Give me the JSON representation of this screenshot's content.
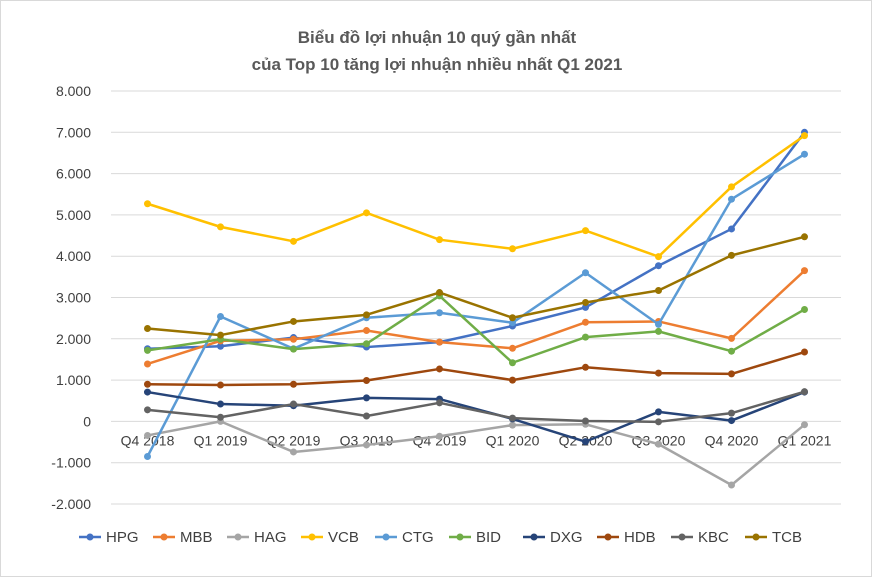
{
  "chart_data": {
    "type": "line",
    "title": "Biểu đồ lợi nhuận 10 quý gần nhất",
    "subtitle": "của Top 10 tăng lợi nhuận nhiều nhất Q1 2021",
    "categories": [
      "Q4 2018",
      "Q1 2019",
      "Q2 2019",
      "Q3 2019",
      "Q4 2019",
      "Q1 2020",
      "Q2 2020",
      "Q3 2020",
      "Q4 2020",
      "Q1 2021"
    ],
    "ylim": [
      -2000,
      8000
    ],
    "yticks": [
      8000,
      7000,
      6000,
      5000,
      4000,
      3000,
      2000,
      1000,
      0,
      -1000,
      -2000
    ],
    "ytick_labels": [
      "8.000",
      "7.000",
      "6.000",
      "5.000",
      "4.000",
      "3.000",
      "2.000",
      "1.000",
      "0",
      "-1.000",
      "-2.000"
    ],
    "grid": true,
    "legend_position": "bottom",
    "series": [
      {
        "name": "HPG",
        "color": "#4472C4",
        "values": [
          1760,
          1820,
          2030,
          1800,
          1920,
          2310,
          2760,
          3770,
          4660,
          7000
        ]
      },
      {
        "name": "MBB",
        "color": "#ED7D31",
        "values": [
          1390,
          1950,
          1990,
          2200,
          1920,
          1770,
          2400,
          2420,
          2010,
          3650
        ]
      },
      {
        "name": "HAG",
        "color": "#A5A5A5",
        "values": [
          -340,
          0,
          -740,
          -570,
          -360,
          -90,
          -70,
          -550,
          -1540,
          -80
        ]
      },
      {
        "name": "VCB",
        "color": "#FFC000",
        "values": [
          5270,
          4710,
          4360,
          5050,
          4400,
          4180,
          4620,
          3990,
          5680,
          6920
        ]
      },
      {
        "name": "CTG",
        "color": "#5B9BD5",
        "values": [
          -850,
          2540,
          1760,
          2510,
          2630,
          2390,
          3600,
          2350,
          5380,
          6470
        ]
      },
      {
        "name": "BID",
        "color": "#70AD47",
        "values": [
          1720,
          1990,
          1750,
          1880,
          3040,
          1420,
          2040,
          2180,
          1700,
          2710
        ]
      },
      {
        "name": "DXG",
        "color": "#264478",
        "values": [
          710,
          420,
          380,
          570,
          540,
          60,
          -490,
          230,
          20,
          710
        ]
      },
      {
        "name": "HDB",
        "color": "#9E480E",
        "values": [
          900,
          880,
          900,
          990,
          1270,
          1000,
          1310,
          1170,
          1150,
          1680
        ]
      },
      {
        "name": "KBC",
        "color": "#636363",
        "values": [
          280,
          100,
          420,
          130,
          450,
          80,
          10,
          -10,
          200,
          720
        ]
      },
      {
        "name": "TCB",
        "color": "#997300",
        "values": [
          2250,
          2090,
          2420,
          2580,
          3120,
          2510,
          2880,
          3170,
          4020,
          4470
        ]
      }
    ]
  }
}
